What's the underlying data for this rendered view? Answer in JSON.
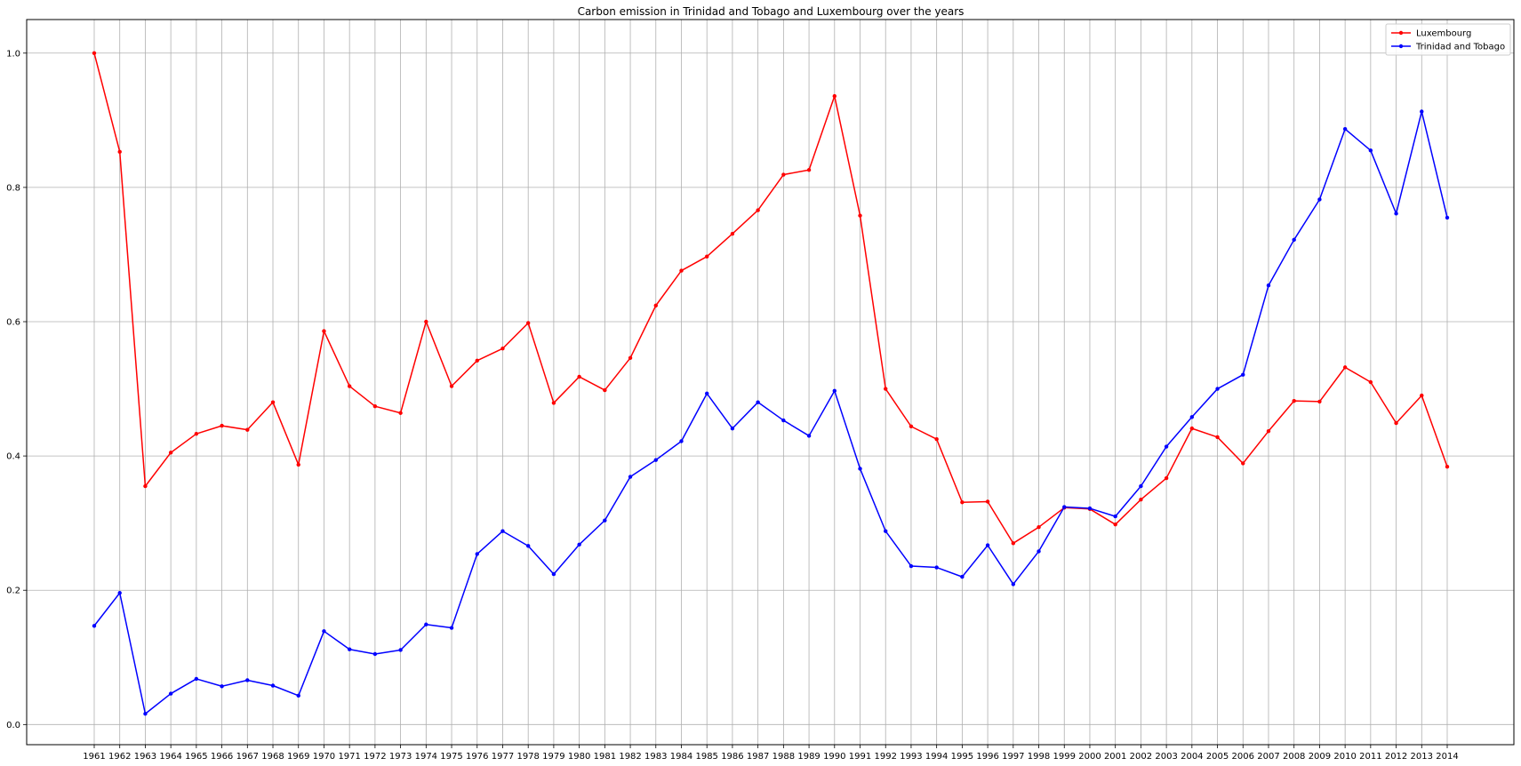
{
  "chart_data": {
    "type": "line",
    "title": "Carbon emission in Trinidad and Tobago and Luxembourg over the years",
    "xlabel": "",
    "ylabel": "",
    "x": [
      "1961",
      "1962",
      "1963",
      "1964",
      "1965",
      "1966",
      "1967",
      "1968",
      "1969",
      "1970",
      "1971",
      "1972",
      "1973",
      "1974",
      "1975",
      "1976",
      "1977",
      "1978",
      "1979",
      "1980",
      "1981",
      "1982",
      "1983",
      "1984",
      "1985",
      "1986",
      "1987",
      "1988",
      "1989",
      "1990",
      "1991",
      "1992",
      "1993",
      "1994",
      "1995",
      "1996",
      "1997",
      "1998",
      "1999",
      "2000",
      "2001",
      "2002",
      "2003",
      "2004",
      "2005",
      "2006",
      "2007",
      "2008",
      "2009",
      "2010",
      "2011",
      "2012",
      "2013",
      "2014"
    ],
    "ylim": [
      -0.03,
      1.05
    ],
    "yticks": [
      "0.0",
      "0.2",
      "0.4",
      "0.6",
      "0.8",
      "1.0"
    ],
    "grid": true,
    "legend_position": "top-right",
    "series": [
      {
        "name": "Luxembourg",
        "color": "#ff0000",
        "values": [
          1.0,
          0.853,
          0.355,
          0.405,
          0.433,
          0.445,
          0.439,
          0.48,
          0.387,
          0.586,
          0.504,
          0.474,
          0.464,
          0.6,
          0.504,
          0.542,
          0.56,
          0.598,
          0.479,
          0.518,
          0.498,
          0.546,
          0.624,
          0.676,
          0.697,
          0.731,
          0.766,
          0.819,
          0.826,
          0.936,
          0.758,
          0.5,
          0.444,
          0.425,
          0.331,
          0.332,
          0.27,
          0.294,
          0.323,
          0.321,
          0.298,
          0.335,
          0.367,
          0.441,
          0.428,
          0.389,
          0.437,
          0.482,
          0.481,
          0.532,
          0.51,
          0.449,
          0.49,
          0.384
        ]
      },
      {
        "name": "Trinidad and Tobago",
        "color": "#0000ff",
        "values": [
          0.147,
          0.196,
          0.016,
          0.046,
          0.068,
          0.057,
          0.066,
          0.058,
          0.043,
          0.139,
          0.112,
          0.105,
          0.111,
          0.149,
          0.144,
          0.254,
          0.288,
          0.266,
          0.224,
          0.268,
          0.304,
          0.369,
          0.394,
          0.422,
          0.493,
          0.441,
          0.48,
          0.453,
          0.43,
          0.497,
          0.381,
          0.288,
          0.236,
          0.234,
          0.22,
          0.267,
          0.209,
          0.258,
          0.324,
          0.322,
          0.31,
          0.355,
          0.414,
          0.458,
          0.5,
          0.521,
          0.654,
          0.722,
          0.782,
          0.887,
          0.855,
          0.761,
          0.913,
          0.755
        ]
      }
    ]
  }
}
